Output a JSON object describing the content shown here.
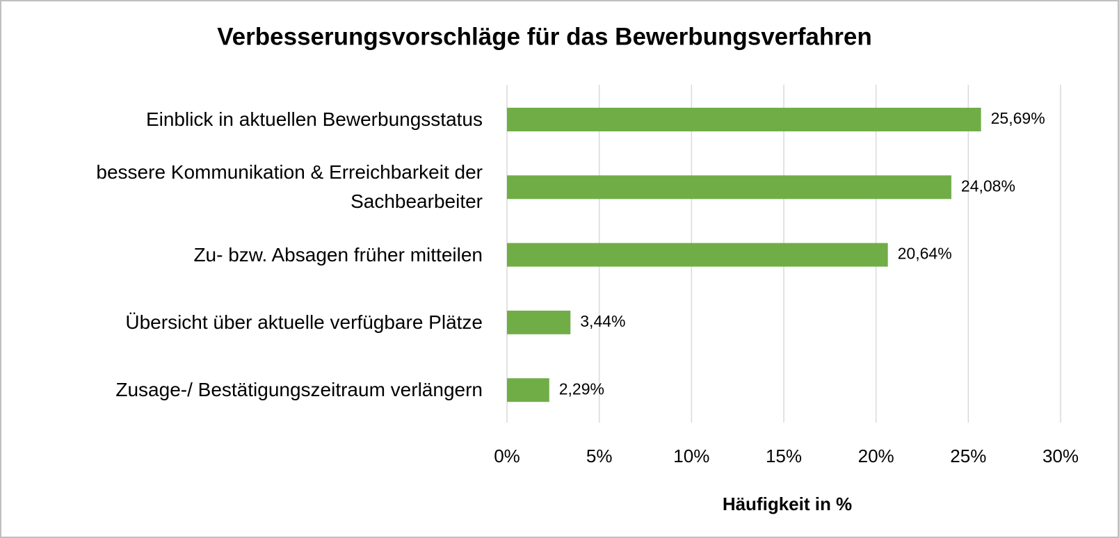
{
  "chart_data": {
    "type": "bar",
    "orientation": "horizontal",
    "title": "Verbesserungsvorschläge für das Bewerbungsverfahren",
    "x_label": "Häufigkeit in %",
    "categories": [
      "Einblick in aktuellen Bewerbungsstatus",
      "bessere Kommunikation & Erreichbarkeit der Sachbearbeiter",
      "Zu- bzw. Absagen früher mitteilen",
      "Übersicht über aktuelle verfügbare Plätze",
      "Zusage-/ Bestätigungszeitraum  verlängern"
    ],
    "values": [
      25.69,
      24.08,
      20.64,
      3.44,
      2.29
    ],
    "value_labels": [
      "25,69%",
      "24,08%",
      "20,64%",
      "3,44%",
      "2,29%"
    ],
    "color": "#70ad47",
    "xlim": [
      0,
      30
    ],
    "xticks": [
      {
        "value": 0,
        "label": "0%"
      },
      {
        "value": 5,
        "label": "5%"
      },
      {
        "value": 10,
        "label": "10%"
      },
      {
        "value": 15,
        "label": "15%"
      },
      {
        "value": 20,
        "label": "20%"
      },
      {
        "value": 25,
        "label": "25%"
      },
      {
        "value": 30,
        "label": "30%"
      }
    ],
    "grid": true
  }
}
